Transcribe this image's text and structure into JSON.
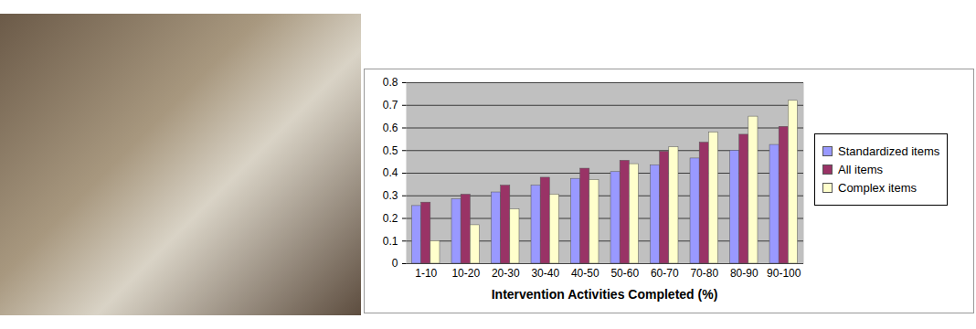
{
  "chart_data": {
    "type": "bar",
    "x_label": "Intervention Activities Completed (%)",
    "categories": [
      "1-10",
      "10-20",
      "20-30",
      "30-40",
      "40-50",
      "50-60",
      "60-70",
      "70-80",
      "80-90",
      "90-100"
    ],
    "series": [
      {
        "name": "Standardized items",
        "color": "#9999ff",
        "values": [
          0.255,
          0.285,
          0.315,
          0.345,
          0.375,
          0.405,
          0.435,
          0.465,
          0.5,
          0.525
        ]
      },
      {
        "name": "All items",
        "color": "#993366",
        "values": [
          0.27,
          0.305,
          0.345,
          0.38,
          0.42,
          0.455,
          0.495,
          0.535,
          0.57,
          0.605
        ]
      },
      {
        "name": "Complex items",
        "color": "#ffffcc",
        "values": [
          0.1,
          0.17,
          0.24,
          0.305,
          0.37,
          0.44,
          0.515,
          0.58,
          0.65,
          0.72
        ]
      }
    ],
    "ylim": [
      0,
      0.8
    ],
    "yticks": [
      0,
      0.1,
      0.2,
      0.3,
      0.4,
      0.5,
      0.6,
      0.7,
      0.8
    ],
    "grid": true,
    "legend": "right"
  }
}
